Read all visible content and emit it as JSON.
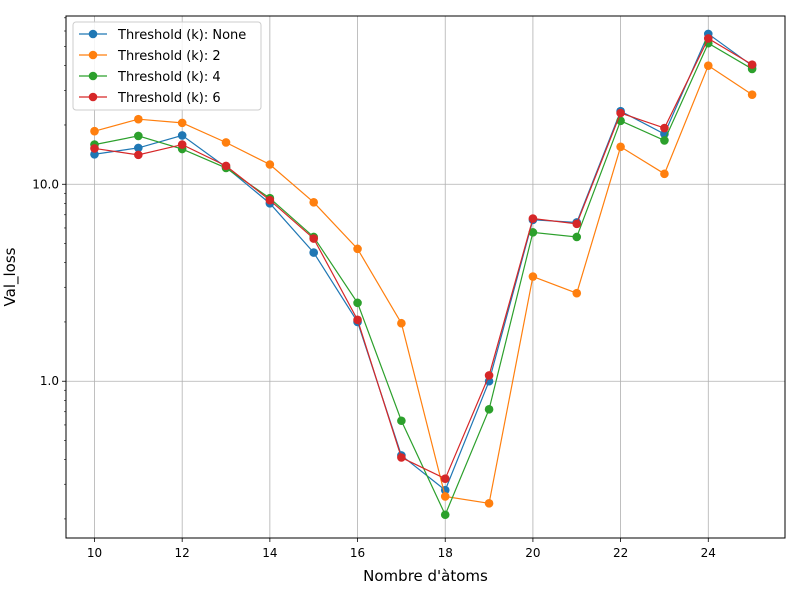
{
  "chart_data": {
    "type": "line",
    "title": "",
    "xlabel": "Nombre d'àtoms",
    "ylabel": "Val_loss",
    "yscale": "log",
    "xlim": [
      9.35,
      25.75
    ],
    "ylim": [
      0.16,
      71.5
    ],
    "x": [
      10,
      11,
      12,
      13,
      14,
      15,
      16,
      17,
      18,
      19,
      20,
      21,
      22,
      23,
      24,
      25
    ],
    "x_ticks": [
      10,
      12,
      14,
      16,
      18,
      20,
      22,
      24
    ],
    "x_tick_labels": [
      "10",
      "12",
      "14",
      "16",
      "18",
      "20",
      "22",
      "24"
    ],
    "y_major_ticks": [
      1.0,
      10.0
    ],
    "y_tick_labels": [
      "1.0",
      "10.0"
    ],
    "grid": true,
    "legend_position": "top-left",
    "series": [
      {
        "name": "Threshold (k): None",
        "color": "#1f77b4",
        "values": [
          14.2,
          15.3,
          17.7,
          12.2,
          8.0,
          4.5,
          2.0,
          0.42,
          0.28,
          1.0,
          6.6,
          6.4,
          23.5,
          18.0,
          58.0,
          40.0
        ]
      },
      {
        "name": "Threshold (k): 2",
        "color": "#ff7f0e",
        "values": [
          18.6,
          21.4,
          20.5,
          16.3,
          12.6,
          8.1,
          4.7,
          1.97,
          0.26,
          0.24,
          3.4,
          2.8,
          15.5,
          11.3,
          40.0,
          28.5
        ]
      },
      {
        "name": "Threshold (k): 4",
        "color": "#2ca02c",
        "values": [
          15.9,
          17.6,
          15.1,
          12.1,
          8.5,
          5.4,
          2.5,
          0.63,
          0.21,
          0.72,
          5.7,
          5.4,
          21.0,
          16.7,
          52.0,
          38.5
        ]
      },
      {
        "name": "Threshold (k): 6",
        "color": "#d62728",
        "values": [
          15.2,
          14.1,
          15.9,
          12.4,
          8.3,
          5.3,
          2.05,
          0.41,
          0.32,
          1.07,
          6.7,
          6.3,
          23.0,
          19.3,
          55.0,
          40.5
        ]
      }
    ]
  }
}
